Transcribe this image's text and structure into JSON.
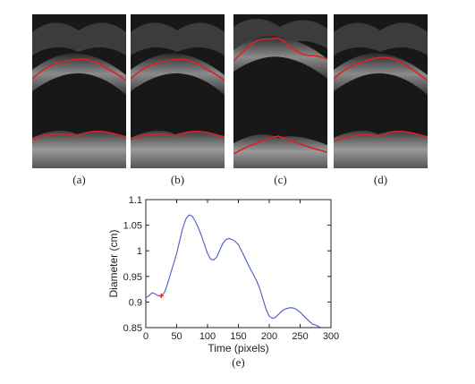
{
  "panels": [
    {
      "caption": "(a)"
    },
    {
      "caption": "(b)"
    },
    {
      "caption": "(c)"
    },
    {
      "caption": "(d)"
    }
  ],
  "colors": {
    "edge": "#e02020",
    "curve": "#4a5bc4",
    "marker": "#e02020"
  },
  "chart_data": {
    "type": "line",
    "caption": "(e)",
    "xlabel": "Time (pixels)",
    "ylabel": "Diameter (cm)",
    "xlim": [
      0,
      300
    ],
    "ylim": [
      0.85,
      1.1
    ],
    "xticks": [
      0,
      50,
      100,
      150,
      200,
      250,
      300
    ],
    "yticks": [
      0.85,
      0.9,
      0.95,
      1,
      1.05,
      1.1
    ],
    "ytick_labels": [
      "0.85",
      "0.9",
      "0.95",
      "1",
      "1.05",
      "1.1"
    ],
    "grid": false,
    "series": [
      {
        "x": [
          0,
          5,
          10,
          15,
          20,
          25,
          30,
          35,
          40,
          45,
          50,
          55,
          60,
          65,
          70,
          75,
          80,
          85,
          90,
          95,
          100,
          105,
          110,
          115,
          120,
          125,
          130,
          135,
          140,
          145,
          150,
          155,
          160,
          165,
          170,
          175,
          180,
          185,
          190,
          195,
          200,
          205,
          210,
          215,
          220,
          225,
          230,
          235,
          240,
          245,
          250,
          255,
          260,
          265,
          270,
          275,
          280,
          285
        ],
        "y": [
          0.908,
          0.912,
          0.918,
          0.916,
          0.912,
          0.912,
          0.918,
          0.935,
          0.955,
          0.975,
          0.995,
          1.02,
          1.045,
          1.062,
          1.07,
          1.068,
          1.058,
          1.045,
          1.03,
          1.012,
          0.995,
          0.984,
          0.982,
          0.988,
          1.002,
          1.015,
          1.022,
          1.024,
          1.022,
          1.018,
          1.012,
          1.0,
          0.988,
          0.975,
          0.963,
          0.952,
          0.94,
          0.925,
          0.905,
          0.885,
          0.872,
          0.868,
          0.87,
          0.876,
          0.882,
          0.886,
          0.888,
          0.889,
          0.888,
          0.885,
          0.88,
          0.874,
          0.868,
          0.862,
          0.857,
          0.855,
          0.852,
          0.85
        ]
      }
    ],
    "marker": {
      "x": 25,
      "y": 0.912
    }
  }
}
